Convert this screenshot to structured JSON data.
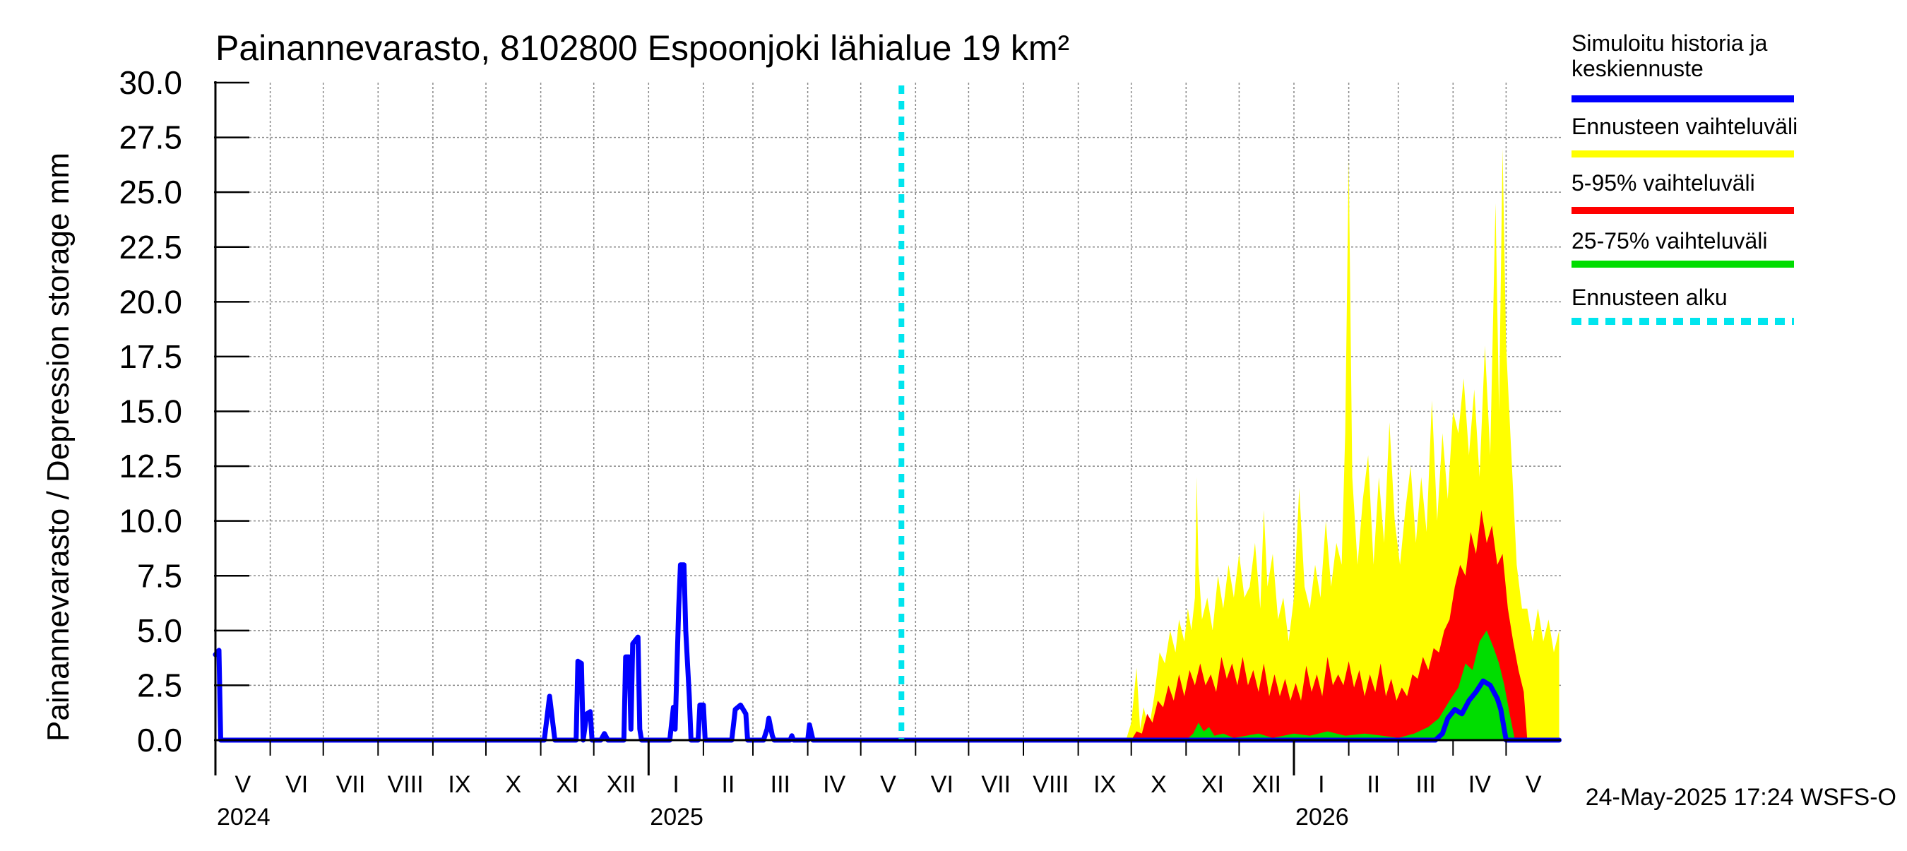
{
  "chart_data": {
    "type": "area",
    "title": "Painannevarasto, 8102800 Espoonjoki lähialue 19 km²",
    "ylabel": "Painannevarasto / Depression storage    mm",
    "ylim": [
      0,
      30
    ],
    "yticks": [
      "0.0",
      "2.5",
      "5.0",
      "7.5",
      "10.0",
      "12.5",
      "15.0",
      "17.5",
      "20.0",
      "22.5",
      "25.0",
      "27.5",
      "30.0"
    ],
    "xlim": [
      "2024-05-01",
      "2026-05-31"
    ],
    "month_labels": [
      "V",
      "VI",
      "VII",
      "VIII",
      "IX",
      "X",
      "XI",
      "XII",
      "I",
      "II",
      "III",
      "IV",
      "V",
      "VI",
      "VII",
      "VIII",
      "IX",
      "X",
      "XI",
      "XII",
      "I",
      "II",
      "III",
      "IV",
      "V"
    ],
    "year_labels": [
      {
        "label": "2024",
        "date": "2024-05-01"
      },
      {
        "label": "2025",
        "date": "2025-01-01"
      },
      {
        "label": "2026",
        "date": "2026-01-01"
      }
    ],
    "grid": true,
    "legend_position": "right",
    "forecast_start": "2025-05-24",
    "footer": "24-May-2025 17:24 WSFS-O",
    "series": [
      {
        "name": "Simuloitu historia ja keskiennuste",
        "color": "#0000ff",
        "points": [
          [
            "2024-05-01",
            3.9
          ],
          [
            "2024-05-03",
            4.1
          ],
          [
            "2024-05-04",
            0.0
          ],
          [
            "2024-11-03",
            0.0
          ],
          [
            "2024-11-06",
            2.0
          ],
          [
            "2024-11-09",
            0.0
          ],
          [
            "2024-11-21",
            0.0
          ],
          [
            "2024-11-22",
            3.6
          ],
          [
            "2024-11-24",
            3.5
          ],
          [
            "2024-11-25",
            0.0
          ],
          [
            "2024-11-27",
            1.2
          ],
          [
            "2024-11-29",
            1.3
          ],
          [
            "2024-11-30",
            0.0
          ],
          [
            "2024-12-05",
            0.0
          ],
          [
            "2024-12-07",
            0.3
          ],
          [
            "2024-12-09",
            0.0
          ],
          [
            "2024-12-18",
            0.0
          ],
          [
            "2024-12-19",
            3.8
          ],
          [
            "2024-12-21",
            3.8
          ],
          [
            "2024-12-22",
            0.5
          ],
          [
            "2024-12-23",
            4.4
          ],
          [
            "2024-12-26",
            4.7
          ],
          [
            "2024-12-27",
            0.5
          ],
          [
            "2024-12-28",
            0.0
          ],
          [
            "2025-01-13",
            0.0
          ],
          [
            "2025-01-15",
            1.5
          ],
          [
            "2025-01-16",
            0.5
          ],
          [
            "2025-01-18",
            6.0
          ],
          [
            "2025-01-19",
            8.0
          ],
          [
            "2025-01-21",
            8.0
          ],
          [
            "2025-01-22",
            5.0
          ],
          [
            "2025-01-24",
            2.0
          ],
          [
            "2025-01-25",
            0.0
          ],
          [
            "2025-01-29",
            0.0
          ],
          [
            "2025-01-30",
            1.6
          ],
          [
            "2025-02-01",
            1.6
          ],
          [
            "2025-02-02",
            0.0
          ],
          [
            "2025-02-17",
            0.0
          ],
          [
            "2025-02-19",
            1.4
          ],
          [
            "2025-02-22",
            1.6
          ],
          [
            "2025-02-25",
            1.2
          ],
          [
            "2025-02-26",
            0.0
          ],
          [
            "2025-03-07",
            0.0
          ],
          [
            "2025-03-09",
            0.5
          ],
          [
            "2025-03-10",
            1.0
          ],
          [
            "2025-03-12",
            0.2
          ],
          [
            "2025-03-13",
            0.0
          ],
          [
            "2025-03-22",
            0.0
          ],
          [
            "2025-03-23",
            0.2
          ],
          [
            "2025-03-24",
            0.0
          ],
          [
            "2025-04-01",
            0.0
          ],
          [
            "2025-04-02",
            0.7
          ],
          [
            "2025-04-04",
            0.0
          ],
          [
            "2026-03-22",
            0.0
          ],
          [
            "2026-03-26",
            0.3
          ],
          [
            "2026-03-29",
            1.0
          ],
          [
            "2026-04-02",
            1.4
          ],
          [
            "2026-04-06",
            1.2
          ],
          [
            "2026-04-10",
            1.8
          ],
          [
            "2026-04-14",
            2.2
          ],
          [
            "2026-04-18",
            2.7
          ],
          [
            "2026-04-22",
            2.5
          ],
          [
            "2026-04-26",
            1.9
          ],
          [
            "2026-04-28",
            1.4
          ],
          [
            "2026-05-01",
            0.0
          ],
          [
            "2026-05-31",
            0.0
          ]
        ]
      },
      {
        "name": "Ennusteen vaihteluväli",
        "color": "#ffff00",
        "points": [
          [
            "2025-09-28",
            0.0
          ],
          [
            "2025-10-01",
            0.8
          ],
          [
            "2025-10-04",
            3.3
          ],
          [
            "2025-10-06",
            0.5
          ],
          [
            "2025-10-08",
            1.5
          ],
          [
            "2025-10-11",
            0.5
          ],
          [
            "2025-10-14",
            2.0
          ],
          [
            "2025-10-17",
            4.0
          ],
          [
            "2025-10-20",
            3.5
          ],
          [
            "2025-10-23",
            5.0
          ],
          [
            "2025-10-26",
            4.0
          ],
          [
            "2025-10-28",
            5.5
          ],
          [
            "2025-10-31",
            4.5
          ],
          [
            "2025-11-02",
            6.0
          ],
          [
            "2025-11-04",
            5.0
          ],
          [
            "2025-11-06",
            6.5
          ],
          [
            "2025-11-07",
            12.0
          ],
          [
            "2025-11-08",
            8.0
          ],
          [
            "2025-11-10",
            5.5
          ],
          [
            "2025-11-13",
            6.5
          ],
          [
            "2025-11-16",
            5.0
          ],
          [
            "2025-11-19",
            7.5
          ],
          [
            "2025-11-22",
            6.0
          ],
          [
            "2025-11-25",
            8.0
          ],
          [
            "2025-11-28",
            6.5
          ],
          [
            "2025-12-01",
            8.5
          ],
          [
            "2025-12-04",
            6.5
          ],
          [
            "2025-12-07",
            7.0
          ],
          [
            "2025-12-10",
            9.0
          ],
          [
            "2025-12-13",
            6.0
          ],
          [
            "2025-12-15",
            10.5
          ],
          [
            "2025-12-17",
            7.0
          ],
          [
            "2025-12-20",
            8.5
          ],
          [
            "2025-12-23",
            5.5
          ],
          [
            "2025-12-26",
            6.5
          ],
          [
            "2025-12-29",
            4.5
          ],
          [
            "2026-01-01",
            6.5
          ],
          [
            "2026-01-04",
            11.5
          ],
          [
            "2026-01-07",
            7.0
          ],
          [
            "2026-01-10",
            6.0
          ],
          [
            "2026-01-13",
            8.0
          ],
          [
            "2026-01-16",
            6.5
          ],
          [
            "2026-01-19",
            10.0
          ],
          [
            "2026-01-22",
            7.0
          ],
          [
            "2026-01-25",
            9.0
          ],
          [
            "2026-01-28",
            8.0
          ],
          [
            "2026-01-30",
            14.0
          ],
          [
            "2026-02-01",
            26.5
          ],
          [
            "2026-02-03",
            12.0
          ],
          [
            "2026-02-06",
            8.0
          ],
          [
            "2026-02-09",
            11.0
          ],
          [
            "2026-02-12",
            13.0
          ],
          [
            "2026-02-15",
            8.0
          ],
          [
            "2026-02-18",
            12.0
          ],
          [
            "2026-02-21",
            9.0
          ],
          [
            "2026-02-24",
            14.5
          ],
          [
            "2026-02-27",
            10.0
          ],
          [
            "2026-03-02",
            8.0
          ],
          [
            "2026-03-05",
            10.5
          ],
          [
            "2026-03-08",
            12.5
          ],
          [
            "2026-03-11",
            9.0
          ],
          [
            "2026-03-14",
            12.0
          ],
          [
            "2026-03-17",
            9.5
          ],
          [
            "2026-03-20",
            15.5
          ],
          [
            "2026-03-23",
            10.0
          ],
          [
            "2026-03-26",
            14.0
          ],
          [
            "2026-03-29",
            11.0
          ],
          [
            "2026-04-01",
            15.0
          ],
          [
            "2026-04-04",
            14.0
          ],
          [
            "2026-04-07",
            16.5
          ],
          [
            "2026-04-10",
            13.0
          ],
          [
            "2026-04-13",
            16.0
          ],
          [
            "2026-04-16",
            12.0
          ],
          [
            "2026-04-19",
            18.0
          ],
          [
            "2026-04-22",
            13.0
          ],
          [
            "2026-04-25",
            24.5
          ],
          [
            "2026-04-27",
            15.0
          ],
          [
            "2026-04-29",
            27.0
          ],
          [
            "2026-05-01",
            18.0
          ],
          [
            "2026-05-04",
            13.0
          ],
          [
            "2026-05-07",
            8.0
          ],
          [
            "2026-05-10",
            6.0
          ],
          [
            "2026-05-13",
            6.0
          ],
          [
            "2026-05-16",
            4.5
          ],
          [
            "2026-05-19",
            6.0
          ],
          [
            "2026-05-22",
            4.5
          ],
          [
            "2026-05-25",
            5.5
          ],
          [
            "2026-05-28",
            4.0
          ],
          [
            "2026-05-31",
            5.0
          ]
        ]
      },
      {
        "name": "5-95% vaihteluväli",
        "color": "#ff0000",
        "points": [
          [
            "2025-10-01",
            0.0
          ],
          [
            "2025-10-04",
            0.4
          ],
          [
            "2025-10-07",
            0.3
          ],
          [
            "2025-10-10",
            1.2
          ],
          [
            "2025-10-13",
            0.8
          ],
          [
            "2025-10-16",
            1.8
          ],
          [
            "2025-10-19",
            1.5
          ],
          [
            "2025-10-22",
            2.5
          ],
          [
            "2025-10-25",
            1.8
          ],
          [
            "2025-10-28",
            3.0
          ],
          [
            "2025-10-31",
            2.0
          ],
          [
            "2025-11-03",
            3.2
          ],
          [
            "2025-11-06",
            2.5
          ],
          [
            "2025-11-09",
            3.5
          ],
          [
            "2025-11-12",
            2.5
          ],
          [
            "2025-11-15",
            3.0
          ],
          [
            "2025-11-18",
            2.2
          ],
          [
            "2025-11-21",
            3.8
          ],
          [
            "2025-11-24",
            2.8
          ],
          [
            "2025-11-27",
            3.5
          ],
          [
            "2025-11-30",
            2.5
          ],
          [
            "2025-12-03",
            3.8
          ],
          [
            "2025-12-06",
            2.5
          ],
          [
            "2025-12-09",
            3.2
          ],
          [
            "2025-12-12",
            2.2
          ],
          [
            "2025-12-15",
            3.5
          ],
          [
            "2025-12-18",
            2.0
          ],
          [
            "2025-12-21",
            3.0
          ],
          [
            "2025-12-24",
            2.0
          ],
          [
            "2025-12-27",
            2.8
          ],
          [
            "2025-12-30",
            1.8
          ],
          [
            "2026-01-02",
            2.6
          ],
          [
            "2026-01-05",
            1.8
          ],
          [
            "2026-01-08",
            3.4
          ],
          [
            "2026-01-11",
            2.2
          ],
          [
            "2026-01-14",
            3.0
          ],
          [
            "2026-01-17",
            2.0
          ],
          [
            "2026-01-20",
            3.8
          ],
          [
            "2026-01-23",
            2.5
          ],
          [
            "2026-01-26",
            3.0
          ],
          [
            "2026-01-29",
            2.5
          ],
          [
            "2026-02-01",
            3.6
          ],
          [
            "2026-02-04",
            2.4
          ],
          [
            "2026-02-07",
            3.2
          ],
          [
            "2026-02-10",
            2.0
          ],
          [
            "2026-02-13",
            3.0
          ],
          [
            "2026-02-16",
            2.2
          ],
          [
            "2026-02-19",
            3.5
          ],
          [
            "2026-02-22",
            2.0
          ],
          [
            "2026-02-25",
            2.8
          ],
          [
            "2026-02-28",
            1.8
          ],
          [
            "2026-03-03",
            2.4
          ],
          [
            "2026-03-06",
            2.0
          ],
          [
            "2026-03-09",
            3.0
          ],
          [
            "2026-03-12",
            2.8
          ],
          [
            "2026-03-15",
            3.8
          ],
          [
            "2026-03-18",
            3.2
          ],
          [
            "2026-03-21",
            4.2
          ],
          [
            "2026-03-24",
            4.0
          ],
          [
            "2026-03-27",
            5.0
          ],
          [
            "2026-03-30",
            5.5
          ],
          [
            "2026-04-02",
            7.0
          ],
          [
            "2026-04-05",
            8.0
          ],
          [
            "2026-04-08",
            7.5
          ],
          [
            "2026-04-11",
            9.5
          ],
          [
            "2026-04-14",
            8.5
          ],
          [
            "2026-04-17",
            10.5
          ],
          [
            "2026-04-20",
            9.0
          ],
          [
            "2026-04-23",
            9.8
          ],
          [
            "2026-04-26",
            8.0
          ],
          [
            "2026-04-29",
            8.5
          ],
          [
            "2026-05-02",
            6.0
          ],
          [
            "2026-05-05",
            4.5
          ],
          [
            "2026-05-08",
            3.2
          ],
          [
            "2026-05-11",
            2.2
          ],
          [
            "2026-05-13",
            0.0
          ]
        ]
      },
      {
        "name": "25-75% vaihteluväli",
        "color": "#00dd00",
        "points": [
          [
            "2025-11-01",
            0.0
          ],
          [
            "2025-11-05",
            0.3
          ],
          [
            "2025-11-08",
            0.8
          ],
          [
            "2025-11-11",
            0.4
          ],
          [
            "2025-11-14",
            0.6
          ],
          [
            "2025-11-17",
            0.2
          ],
          [
            "2025-11-22",
            0.3
          ],
          [
            "2025-11-28",
            0.1
          ],
          [
            "2025-12-05",
            0.2
          ],
          [
            "2025-12-12",
            0.3
          ],
          [
            "2025-12-20",
            0.1
          ],
          [
            "2026-01-01",
            0.3
          ],
          [
            "2026-01-10",
            0.2
          ],
          [
            "2026-01-20",
            0.4
          ],
          [
            "2026-01-30",
            0.2
          ],
          [
            "2026-02-10",
            0.3
          ],
          [
            "2026-02-20",
            0.2
          ],
          [
            "2026-03-01",
            0.1
          ],
          [
            "2026-03-10",
            0.3
          ],
          [
            "2026-03-18",
            0.6
          ],
          [
            "2026-03-24",
            1.0
          ],
          [
            "2026-03-30",
            1.8
          ],
          [
            "2026-04-04",
            2.4
          ],
          [
            "2026-04-08",
            3.5
          ],
          [
            "2026-04-12",
            3.2
          ],
          [
            "2026-04-16",
            4.5
          ],
          [
            "2026-04-20",
            5.0
          ],
          [
            "2026-04-24",
            4.2
          ],
          [
            "2026-04-27",
            3.5
          ],
          [
            "2026-04-30",
            2.5
          ],
          [
            "2026-05-03",
            1.2
          ],
          [
            "2026-05-06",
            0.0
          ]
        ]
      }
    ]
  },
  "legend": {
    "items": [
      {
        "label": "Simuloitu historia ja\nkeskiennuste",
        "color": "#0000ff",
        "style": "solid"
      },
      {
        "label": "Ennusteen vaihteluväli",
        "color": "#ffff00",
        "style": "solid"
      },
      {
        "label": "5-95% vaihteluväli",
        "color": "#ff0000",
        "style": "solid"
      },
      {
        "label": "25-75% vaihteluväli",
        "color": "#00dd00",
        "style": "solid"
      },
      {
        "label": "Ennusteen alku",
        "color": "#00e5ee",
        "style": "dashed"
      }
    ]
  }
}
